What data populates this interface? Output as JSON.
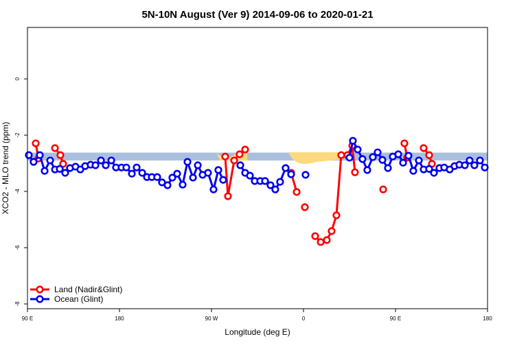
{
  "chart_data": {
    "type": "line",
    "title": "5N-10N August (Ver 9)   2014-09-06 to 2020-01-21",
    "x_label": "Longitude (deg E)",
    "y_label": "XCO2 - MLO trend (ppm)",
    "xlim": [
      90,
      540
    ],
    "ylim": [
      -8.17,
      1.83
    ],
    "xticks": [
      {
        "value": 90,
        "label": "90 E"
      },
      {
        "value": 180,
        "label": "180"
      },
      {
        "value": 270,
        "label": "90 W"
      },
      {
        "value": 360,
        "label": "0"
      },
      {
        "value": 450,
        "label": "90 E"
      },
      {
        "value": 540,
        "label": "180"
      }
    ],
    "yticks": [
      -8,
      -6,
      -4,
      -2,
      0
    ],
    "band": {
      "range": [
        -2.9,
        -2.62
      ],
      "color": "#a9bfdd"
    },
    "legend": "bottom-left",
    "series": [
      {
        "name": "Land (Nadir&Glint)",
        "color": "#ff0000",
        "x": [
          98.1,
          100.7,
          null,
          116.9,
          122.2,
          124.9,
          null,
          283.4,
          286.1,
          292.2,
          297.5,
          302.9,
          null,
          347.9,
          353.3,
          null,
          361.3,
          null,
          371.4,
          376.8,
          382.8,
          387.5,
          392.2,
          396.9,
          403.0,
          407.7,
          410.3,
          null,
          437.9,
          null,
          458.7,
          461.4,
          null,
          477.5,
          482.9,
          485.6
        ],
        "values": [
          -2.29,
          -2.83,
          null,
          -2.46,
          -2.71,
          -3.02,
          null,
          -2.76,
          -4.17,
          -2.9,
          -2.68,
          -2.51,
          null,
          -3.34,
          -4.02,
          null,
          -4.56,
          null,
          -5.59,
          -5.8,
          -5.73,
          -5.41,
          -4.85,
          -2.71,
          -2.71,
          -2.37,
          -3.32,
          null,
          -3.93,
          null,
          -2.29,
          -2.8,
          null,
          -2.46,
          -2.71,
          -3.02
        ]
      },
      {
        "name": "Ocean (Glint)",
        "color": "#0000ee",
        "x": [
          91.3,
          96.0,
          102.1,
          106.8,
          112.2,
          116.9,
          121.6,
          126.9,
          131.6,
          137.0,
          141.7,
          146.4,
          151.8,
          156.5,
          161.9,
          166.6,
          172.0,
          176.6,
          182.0,
          186.7,
          192.1,
          196.8,
          202.2,
          206.9,
          211.6,
          216.9,
          221.6,
          227.0,
          231.7,
          236.4,
          241.8,
          246.5,
          251.9,
          256.6,
          261.3,
          266.6,
          272.0,
          276.7,
          281.4,
          null,
          298.2,
          302.9,
          307.6,
          312.3,
          317.7,
          322.4,
          327.7,
          332.4,
          337.1,
          342.5,
          347.9,
          null,
          362.0,
          null,
          405.0,
          408.3,
          413.0,
          417.7,
          422.4,
          427.8,
          432.5,
          437.2,
          442.6,
          447.3,
          452.7,
          457.4,
          462.7,
          467.4,
          472.8,
          477.5,
          482.9,
          487.6,
          492.9,
          497.6,
          503.0,
          507.7,
          512.4,
          517.8,
          522.5,
          527.2,
          532.6,
          537.3
        ],
        "values": [
          -2.71,
          -2.95,
          -2.71,
          -3.27,
          -2.9,
          -3.22,
          -3.2,
          -3.34,
          -3.17,
          -3.12,
          -3.22,
          -3.1,
          -3.05,
          -3.07,
          -2.9,
          -3.07,
          -2.9,
          -3.15,
          -3.15,
          -3.15,
          -3.37,
          -3.15,
          -3.34,
          -3.49,
          -3.49,
          -3.49,
          -3.68,
          -3.78,
          -3.51,
          -3.37,
          -3.76,
          -2.95,
          -3.51,
          -3.07,
          -3.41,
          -3.34,
          -3.93,
          -3.24,
          -3.59,
          null,
          -3.07,
          -3.34,
          -3.44,
          -3.63,
          -3.63,
          -3.63,
          -3.78,
          -3.93,
          -3.66,
          -3.17,
          -3.39,
          null,
          -3.41,
          null,
          -2.8,
          -2.2,
          -2.51,
          -2.85,
          -3.24,
          -2.78,
          -2.61,
          -2.88,
          -3.17,
          -2.76,
          -2.68,
          -2.98,
          -2.73,
          -3.27,
          -2.9,
          -3.22,
          -3.2,
          -3.34,
          -3.17,
          -3.15,
          -3.22,
          -3.1,
          -3.05,
          -3.07,
          -2.9,
          -3.07,
          -2.9,
          -3.15
        ]
      }
    ]
  }
}
